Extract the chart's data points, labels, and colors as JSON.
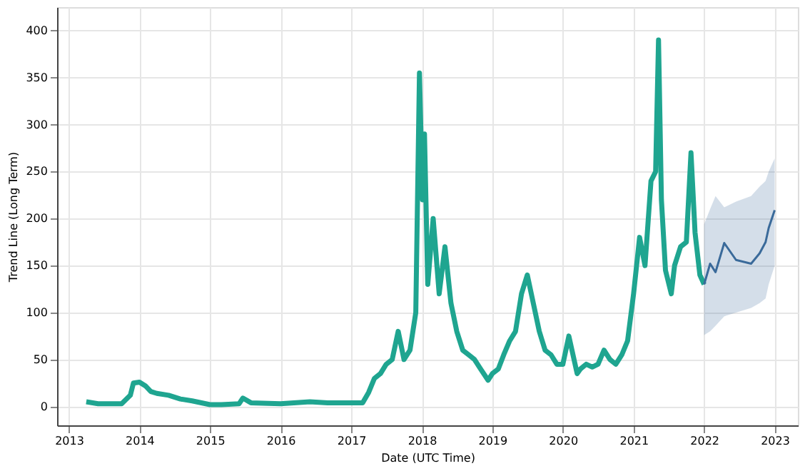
{
  "chart_data": {
    "type": "line",
    "xlabel": "Date (UTC Time)",
    "ylabel": "Trend Line (Long Term)",
    "xlim": [
      "2012-11-01",
      "2023-05-01"
    ],
    "xticks": [
      "2013",
      "2014",
      "2015",
      "2016",
      "2017",
      "2018",
      "2019",
      "2020",
      "2021",
      "2022",
      "2023"
    ],
    "ylim": [
      -20,
      425
    ],
    "yticks": [
      0,
      50,
      100,
      150,
      200,
      250,
      300,
      350,
      400
    ],
    "grid": true,
    "line_style": "solid",
    "series": [
      {
        "color": "#1fa590",
        "x": [
          "2013-04-01",
          "2013-06-01",
          "2013-10-01",
          "2013-11-15",
          "2013-12-01",
          "2014-01-01",
          "2014-02-01",
          "2014-03-01",
          "2014-04-01",
          "2014-06-01",
          "2014-08-01",
          "2014-10-01",
          "2015-01-01",
          "2015-03-01",
          "2015-06-01",
          "2015-06-20",
          "2015-08-01",
          "2016-01-01",
          "2016-06-01",
          "2016-09-01",
          "2017-01-01",
          "2017-03-01",
          "2017-04-01",
          "2017-05-01",
          "2017-06-01",
          "2017-07-01",
          "2017-08-01",
          "2017-09-01",
          "2017-10-01",
          "2017-11-01",
          "2017-12-01",
          "2017-12-20",
          "2018-01-05",
          "2018-01-15",
          "2018-02-01",
          "2018-03-01",
          "2018-04-01",
          "2018-05-01",
          "2018-06-01",
          "2018-07-01",
          "2018-08-01",
          "2018-09-01",
          "2018-10-01",
          "2018-11-01",
          "2018-12-10",
          "2019-01-01",
          "2019-02-01",
          "2019-03-01",
          "2019-04-01",
          "2019-05-01",
          "2019-06-01",
          "2019-07-01",
          "2019-08-01",
          "2019-09-01",
          "2019-10-01",
          "2019-11-01",
          "2019-12-01",
          "2020-01-01",
          "2020-02-01",
          "2020-03-15",
          "2020-04-01",
          "2020-05-01",
          "2020-06-01",
          "2020-07-01",
          "2020-08-01",
          "2020-09-01",
          "2020-10-01",
          "2020-11-01",
          "2020-12-01",
          "2021-01-01",
          "2021-02-01",
          "2021-03-01",
          "2021-04-01",
          "2021-04-25",
          "2021-05-10",
          "2021-05-25",
          "2021-06-15",
          "2021-07-15",
          "2021-08-01",
          "2021-09-01",
          "2021-10-01",
          "2021-10-25",
          "2021-11-15",
          "2021-12-10",
          "2022-01-01"
        ],
        "values": [
          5,
          3,
          3,
          12,
          25,
          26,
          22,
          16,
          14,
          12,
          8,
          6,
          2,
          2,
          3,
          9,
          4,
          3,
          5,
          4,
          4,
          4,
          15,
          30,
          35,
          45,
          50,
          80,
          50,
          60,
          100,
          355,
          220,
          290,
          130,
          200,
          120,
          170,
          110,
          80,
          60,
          55,
          50,
          40,
          28,
          35,
          40,
          55,
          70,
          80,
          120,
          140,
          110,
          80,
          60,
          55,
          45,
          45,
          75,
          35,
          40,
          45,
          42,
          45,
          60,
          50,
          45,
          55,
          70,
          120,
          180,
          150,
          240,
          250,
          390,
          220,
          145,
          120,
          150,
          170,
          175,
          270,
          185,
          140,
          130
        ]
      },
      {
        "color": "#3a6a9a",
        "x": [
          "2022-01-01",
          "2022-02-01",
          "2022-03-01",
          "2022-04-15",
          "2022-06-15",
          "2022-09-01",
          "2022-10-15",
          "2022-11-15",
          "2022-12-01",
          "2023-01-01"
        ],
        "values": [
          130,
          152,
          143,
          174,
          156,
          152,
          163,
          175,
          190,
          209
        ],
        "lower": [
          76,
          80,
          86,
          96,
          100,
          105,
          110,
          115,
          130,
          150
        ],
        "upper": [
          194,
          210,
          224,
          212,
          218,
          224,
          234,
          240,
          250,
          264
        ]
      }
    ]
  }
}
